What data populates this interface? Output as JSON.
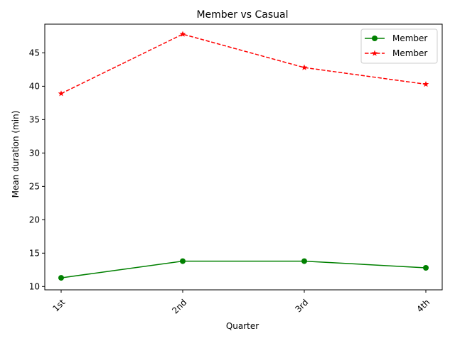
{
  "chart_data": {
    "type": "line",
    "title": "Member vs Casual",
    "xlabel": "Quarter",
    "ylabel": "Mean duration (min)",
    "categories": [
      "1st",
      "2nd",
      "3rd",
      "4th"
    ],
    "ylim": [
      9.5,
      49.3
    ],
    "yticks": [
      10,
      15,
      20,
      25,
      30,
      35,
      40,
      45
    ],
    "grid": false,
    "legend_position": "upper right",
    "series": [
      {
        "name": "Member",
        "values": [
          11.3,
          13.8,
          13.8,
          12.8
        ],
        "color": "#008000",
        "line_style": "solid",
        "marker": "circle"
      },
      {
        "name": "Member",
        "values": [
          38.9,
          47.8,
          42.8,
          40.3
        ],
        "color": "#ff0000",
        "line_style": "dashed",
        "marker": "star"
      }
    ]
  }
}
